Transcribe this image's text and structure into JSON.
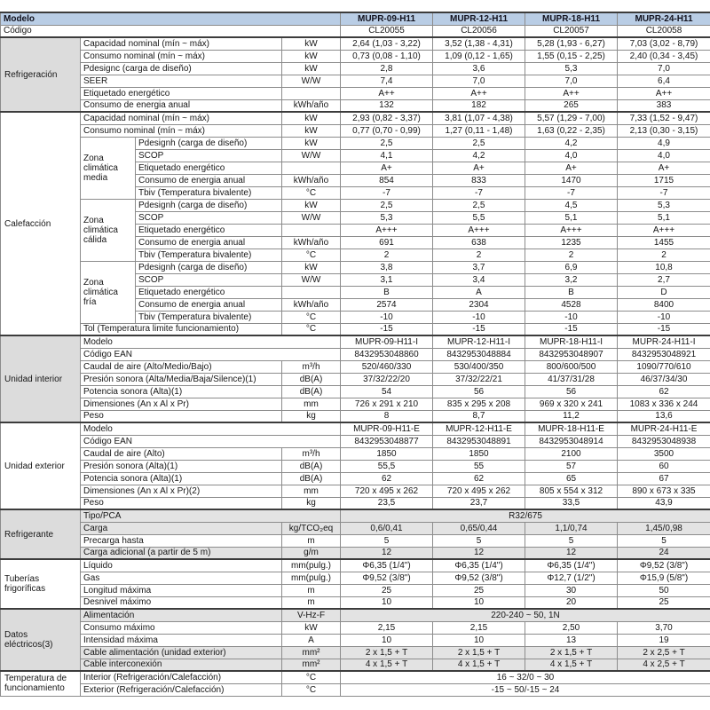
{
  "colors": {
    "header_bg": "#b9cde5",
    "row_shade": "#e3e3e3",
    "section_shade": "#dcdcdc",
    "border": "#8c8c8c",
    "heavy_border": "#3c3c3c"
  },
  "header": {
    "label": "Modelo",
    "models": [
      "MUPR-09-H11",
      "MUPR-12-H11",
      "MUPR-18-H11",
      "MUPR-24-H11"
    ]
  },
  "codigo": {
    "label": "Código",
    "values": [
      "CL20055",
      "CL20056",
      "CL20057",
      "CL20058"
    ]
  },
  "sections": [
    {
      "name": "Refrigeración",
      "shaded_label": true,
      "rows": [
        {
          "label": "Capacidad nominal (mín ~ máx)",
          "unit": "kW",
          "values": [
            "2,64 (1,03 - 3,22)",
            "3,52 (1,38 - 4,31)",
            "5,28 (1,93 - 6,27)",
            "7,03 (3,02 - 8,79)"
          ]
        },
        {
          "label": "Consumo nominal (mín ~ máx)",
          "unit": "kW",
          "values": [
            "0,73 (0,08 - 1,10)",
            "1,09 (0,12 - 1,65)",
            "1,55 (0,15 - 2,25)",
            "2,40 (0,34 - 3,45)"
          ]
        },
        {
          "label": "Pdesignc (carga de diseño)",
          "unit": "kW",
          "values": [
            "2,8",
            "3,6",
            "5,3",
            "7,0"
          ]
        },
        {
          "label": "SEER",
          "unit": "W/W",
          "values": [
            "7,4",
            "7,0",
            "7,0",
            "6,4"
          ]
        },
        {
          "label": "Etiquetado energético",
          "unit": "",
          "values": [
            "A++",
            "A++",
            "A++",
            "A++"
          ]
        },
        {
          "label": "Consumo de energia anual",
          "unit": "kWh/año",
          "values": [
            "132",
            "182",
            "265",
            "383"
          ]
        }
      ]
    },
    {
      "name": "Calefacción",
      "shaded_label": false,
      "rows": [
        {
          "label": "Capacidad nominal (mín ~ máx)",
          "unit": "kW",
          "values": [
            "2,93 (0,82 - 3,37)",
            "3,81 (1,07 - 4,38)",
            "5,57 (1,29 - 7,00)",
            "7,33 (1,52 - 9,47)"
          ]
        },
        {
          "label": "Consumo nominal (mín ~ máx)",
          "unit": "kW",
          "values": [
            "0,77 (0,70 - 0,99)",
            "1,27 (0,11 - 1,48)",
            "1,63 (0,22 - 2,35)",
            "2,13 (0,30 - 3,15)"
          ]
        },
        {
          "zona": "Zona climática media",
          "zona_rows": 5,
          "label": "Pdesignh (carga de diseño)",
          "unit": "kW",
          "values": [
            "2,5",
            "2,5",
            "4,2",
            "4,9"
          ]
        },
        {
          "in_zona": true,
          "label": "SCOP",
          "unit": "W/W",
          "values": [
            "4,1",
            "4,2",
            "4,0",
            "4,0"
          ]
        },
        {
          "in_zona": true,
          "label": "Etiquetado energético",
          "unit": "",
          "values": [
            "A+",
            "A+",
            "A+",
            "A+"
          ]
        },
        {
          "in_zona": true,
          "label": "Consumo de energia anual",
          "unit": "kWh/año",
          "values": [
            "854",
            "833",
            "1470",
            "1715"
          ]
        },
        {
          "in_zona": true,
          "label": "Tbiv (Temperatura bivalente)",
          "unit": "°C",
          "values": [
            "-7",
            "-7",
            "-7",
            "-7"
          ]
        },
        {
          "zona": "Zona climática cálida",
          "zona_rows": 5,
          "label": "Pdesignh (carga de diseño)",
          "unit": "kW",
          "values": [
            "2,5",
            "2,5",
            "4,5",
            "5,3"
          ]
        },
        {
          "in_zona": true,
          "label": "SCOP",
          "unit": "W/W",
          "values": [
            "5,3",
            "5,5",
            "5,1",
            "5,1"
          ]
        },
        {
          "in_zona": true,
          "label": "Etiquetado energético",
          "unit": "",
          "values": [
            "A+++",
            "A+++",
            "A+++",
            "A+++"
          ]
        },
        {
          "in_zona": true,
          "label": "Consumo de energia anual",
          "unit": "kWh/año",
          "values": [
            "691",
            "638",
            "1235",
            "1455"
          ]
        },
        {
          "in_zona": true,
          "label": "Tbiv (Temperatura bivalente)",
          "unit": "°C",
          "values": [
            "2",
            "2",
            "2",
            "2"
          ]
        },
        {
          "zona": "Zona climática fría",
          "zona_rows": 5,
          "label": "Pdesignh (carga de diseño)",
          "unit": "kW",
          "values": [
            "3,8",
            "3,7",
            "6,9",
            "10,8"
          ]
        },
        {
          "in_zona": true,
          "label": "SCOP",
          "unit": "W/W",
          "values": [
            "3,1",
            "3,4",
            "3,2",
            "2,7"
          ]
        },
        {
          "in_zona": true,
          "label": "Etiquetado energético",
          "unit": "",
          "values": [
            "B",
            "A",
            "B",
            "D"
          ]
        },
        {
          "in_zona": true,
          "label": "Consumo de energia anual",
          "unit": "kWh/año",
          "values": [
            "2574",
            "2304",
            "4528",
            "8400"
          ]
        },
        {
          "in_zona": true,
          "label": "Tbiv (Temperatura bivalente)",
          "unit": "°C",
          "values": [
            "-10",
            "-10",
            "-10",
            "-10"
          ]
        },
        {
          "label": "Tol (Temperatura limite funcionamiento)",
          "unit": "°C",
          "values": [
            "-15",
            "-15",
            "-15",
            "-15"
          ]
        }
      ]
    },
    {
      "name": "Unidad interior",
      "shaded_label": true,
      "rows": [
        {
          "label": "Modelo",
          "span_label": true,
          "values": [
            "MUPR-09-H11-I",
            "MUPR-12-H11-I",
            "MUPR-18-H11-I",
            "MUPR-24-H11-I"
          ]
        },
        {
          "label": "Código EAN",
          "span_label": true,
          "values": [
            "8432953048860",
            "8432953048884",
            "8432953048907",
            "8432953048921"
          ]
        },
        {
          "label": "Caudal de aire (Alto/Medio/Bajo)",
          "unit": "m³/h",
          "values": [
            "520/460/330",
            "530/400/350",
            "800/600/500",
            "1090/770/610"
          ]
        },
        {
          "label": "Presión sonora (Alta/Media/Baja/Silence)(1)",
          "unit": "dB(A)",
          "values": [
            "37/32/22/20",
            "37/32/22/21",
            "41/37/31/28",
            "46/37/34/30"
          ]
        },
        {
          "label": "Potencia sonora (Alta)(1)",
          "unit": "dB(A)",
          "values": [
            "54",
            "56",
            "56",
            "62"
          ]
        },
        {
          "label": "Dimensiones (An x Al x Pr)",
          "unit": "mm",
          "values": [
            "726 x 291 x 210",
            "835 x 295 x 208",
            "969 x 320 x 241",
            "1083 x 336 x 244"
          ]
        },
        {
          "label": "Peso",
          "unit": "kg",
          "values": [
            "8",
            "8,7",
            "11,2",
            "13,6"
          ]
        }
      ]
    },
    {
      "name": "Unidad exterior",
      "shaded_label": false,
      "rows": [
        {
          "label": "Modelo",
          "span_label": true,
          "values": [
            "MUPR-09-H11-E",
            "MUPR-12-H11-E",
            "MUPR-18-H11-E",
            "MUPR-24-H11-E"
          ]
        },
        {
          "label": "Código EAN",
          "span_label": true,
          "values": [
            "8432953048877",
            "8432953048891",
            "8432953048914",
            "8432953048938"
          ]
        },
        {
          "label": "Caudal de aire (Alto)",
          "unit": "m³/h",
          "values": [
            "1850",
            "1850",
            "2100",
            "3500"
          ]
        },
        {
          "label": "Presión sonora (Alta)(1)",
          "unit": "dB(A)",
          "values": [
            "55,5",
            "55",
            "57",
            "60"
          ]
        },
        {
          "label": "Potencia sonora (Alta)(1)",
          "unit": "dB(A)",
          "values": [
            "62",
            "62",
            "65",
            "67"
          ]
        },
        {
          "label": "Dimensiones (An x Al x Pr)(2)",
          "unit": "mm",
          "values": [
            "720 x 495 x 262",
            "720 x 495 x 262",
            "805 x 554 x 312",
            "890 x 673 x 335"
          ]
        },
        {
          "label": "Peso",
          "unit": "kg",
          "values": [
            "23,5",
            "23,7",
            "33,5",
            "43,9"
          ]
        }
      ]
    },
    {
      "name": "Refrigerante",
      "shaded_label": true,
      "rows": [
        {
          "label": "Tipo/PCA",
          "span_label": true,
          "span_values": true,
          "shade": true,
          "values": [
            "R32/675"
          ]
        },
        {
          "label": "Carga",
          "unit": "kg/TCO₂eq",
          "shade": true,
          "values": [
            "0,6/0,41",
            "0,65/0,44",
            "1,1/0,74",
            "1,45/0,98"
          ]
        },
        {
          "label": "Precarga hasta",
          "unit": "m",
          "values": [
            "5",
            "5",
            "5",
            "5"
          ]
        },
        {
          "label": "Carga adicional (a partir de 5 m)",
          "unit": "g/m",
          "shade": true,
          "values": [
            "12",
            "12",
            "12",
            "24"
          ]
        }
      ]
    },
    {
      "name": "Tuberías frigoríficas",
      "shaded_label": false,
      "rows": [
        {
          "label": "Líquido",
          "unit": "mm(pulg.)",
          "values": [
            "Φ6,35 (1/4\")",
            "Φ6,35 (1/4\")",
            "Φ6,35 (1/4\")",
            "Φ9,52 (3/8\")"
          ]
        },
        {
          "label": "Gas",
          "unit": "mm(pulg.)",
          "values": [
            "Φ9,52 (3/8\")",
            "Φ9,52 (3/8\")",
            "Φ12,7 (1/2\")",
            "Φ15,9 (5/8\")"
          ]
        },
        {
          "label": "Longitud máxima",
          "unit": "m",
          "values": [
            "25",
            "25",
            "30",
            "50"
          ]
        },
        {
          "label": "Desnivel máximo",
          "unit": "m",
          "values": [
            "10",
            "10",
            "20",
            "25"
          ]
        }
      ]
    },
    {
      "name": "Datos eléctricos(3)",
      "shaded_label": true,
      "rows": [
        {
          "label": "Alimentación",
          "unit": "V-Hz-F",
          "span_values": true,
          "shade": true,
          "values": [
            "220-240 ~ 50, 1N"
          ]
        },
        {
          "label": "Consumo máximo",
          "unit": "kW",
          "values": [
            "2,15",
            "2,15",
            "2,50",
            "3,70"
          ]
        },
        {
          "label": "Intensidad máxima",
          "unit": "A",
          "values": [
            "10",
            "10",
            "13",
            "19"
          ]
        },
        {
          "label": "Cable alimentación (unidad exterior)",
          "unit": "mm²",
          "shade": true,
          "values": [
            "2 x 1,5 + T",
            "2 x 1,5 + T",
            "2 x 1,5 + T",
            "2 x 2,5 + T"
          ]
        },
        {
          "label": "Cable interconexión",
          "unit": "mm²",
          "shade": true,
          "values": [
            "4 x 1,5 + T",
            "4 x 1,5 + T",
            "4 x 1,5 + T",
            "4 x 2,5 + T"
          ]
        }
      ]
    },
    {
      "name": "Temperatura de funcionamiento",
      "shaded_label": false,
      "rows": [
        {
          "label": "Interior (Refrigeración/Calefacción)",
          "unit": "°C",
          "span_values": true,
          "values": [
            "16 ~ 32/0 ~ 30"
          ]
        },
        {
          "label": "Exterior (Refrigeración/Calefacción)",
          "unit": "°C",
          "span_values": true,
          "values": [
            "-15 ~ 50/-15 ~ 24"
          ]
        }
      ]
    }
  ]
}
